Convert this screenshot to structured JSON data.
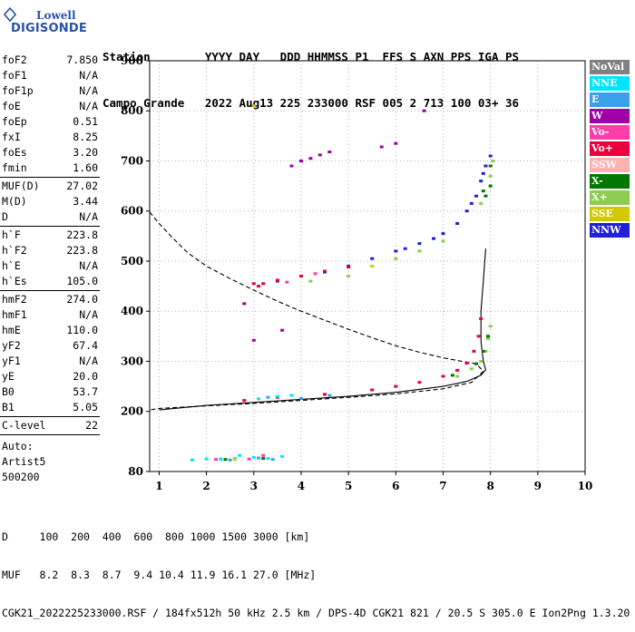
{
  "logo": {
    "line1": "Lowell",
    "line2": "DIGISONDE"
  },
  "header": {
    "row1": "Station        YYYY DAY   DDD HHMMSS P1  FFS S AXN PPS IGA PS",
    "row2": "Campo Grande   2022 Aug13 225 233000 RSF 005 2 713 100 03+ 36"
  },
  "params": {
    "group1": [
      {
        "name": "foF2",
        "value": "7.850"
      },
      {
        "name": "foF1",
        "value": "N/A"
      },
      {
        "name": "foF1p",
        "value": "N/A"
      },
      {
        "name": "foE",
        "value": "N/A"
      },
      {
        "name": "foEp",
        "value": "0.51"
      },
      {
        "name": "fxI",
        "value": "8.25"
      },
      {
        "name": "foEs",
        "value": "3.20"
      },
      {
        "name": "fmin",
        "value": "1.60"
      }
    ],
    "group2": [
      {
        "name": "MUF(D)",
        "value": "27.02"
      },
      {
        "name": "M(D)",
        "value": "3.44"
      },
      {
        "name": "D",
        "value": "N/A"
      }
    ],
    "group3": [
      {
        "name": "h`F",
        "value": "223.8"
      },
      {
        "name": "h`F2",
        "value": "223.8"
      },
      {
        "name": "h`E",
        "value": "N/A"
      },
      {
        "name": "h`Es",
        "value": "105.0"
      }
    ],
    "group4": [
      {
        "name": "hmF2",
        "value": "274.0"
      },
      {
        "name": "hmF1",
        "value": "N/A"
      },
      {
        "name": "hmE",
        "value": "110.0"
      },
      {
        "name": "yF2",
        "value": "67.4"
      },
      {
        "name": "yF1",
        "value": "N/A"
      },
      {
        "name": "yE",
        "value": "20.0"
      },
      {
        "name": "B0",
        "value": "53.7"
      },
      {
        "name": "B1",
        "value": "5.05"
      }
    ],
    "group5": [
      {
        "name": "C-level",
        "value": "22"
      }
    ],
    "auto": [
      "Auto:",
      "Artist5",
      "500200"
    ]
  },
  "legend": [
    {
      "label": "NoVal",
      "color": "#808080"
    },
    {
      "label": "NNE",
      "color": "#00e5ff"
    },
    {
      "label": "E",
      "color": "#3aa0ea"
    },
    {
      "label": "W",
      "color": "#a000a8"
    },
    {
      "label": "Vo-",
      "color": "#ff3ca8"
    },
    {
      "label": "Vo+",
      "color": "#e8003c"
    },
    {
      "label": "SSW",
      "color": "#ffb0b0"
    },
    {
      "label": "X-",
      "color": "#007800"
    },
    {
      "label": "X+",
      "color": "#8ccc50"
    },
    {
      "label": "SSE",
      "color": "#d2c800"
    },
    {
      "label": "NNW",
      "color": "#2020d8"
    }
  ],
  "bottom": {
    "line1": "D     100  200  400  600  800 1000 1500 3000 [km]",
    "line2": "MUF   8.2  8.3  8.7  9.4 10.4 11.9 16.1 27.0 [MHz]",
    "line3": "CGK21_2022225233000.RSF / 184fx512h 50 kHz 2.5 km / DPS-4D CGK21 821 / 20.5 S 305.0 E Ion2Png 1.3.20"
  },
  "chart_data": {
    "type": "scatter",
    "xlabel": "",
    "ylabel": "",
    "xlim": [
      0.8,
      10
    ],
    "ylim": [
      80,
      900
    ],
    "xticks": [
      1,
      2,
      3,
      4,
      5,
      6,
      7,
      8,
      9,
      10
    ],
    "yticks": [
      80,
      200,
      300,
      400,
      500,
      600,
      700,
      800,
      900
    ],
    "grid": "dotted",
    "legend_position": "right",
    "series": [
      {
        "color_key": "NNW",
        "points": [
          [
            5.0,
            490
          ],
          [
            5.5,
            505
          ],
          [
            6.0,
            520
          ],
          [
            6.5,
            535
          ],
          [
            7.0,
            555
          ],
          [
            7.3,
            575
          ],
          [
            7.5,
            600
          ],
          [
            7.7,
            630
          ],
          [
            7.8,
            660
          ],
          [
            7.9,
            690
          ],
          [
            8.0,
            710
          ],
          [
            4.5,
            478
          ],
          [
            4.0,
            470
          ],
          [
            3.5,
            460
          ],
          [
            6.8,
            545
          ],
          [
            7.6,
            615
          ],
          [
            7.85,
            675
          ],
          [
            6.2,
            525
          ]
        ]
      },
      {
        "color_key": "Vo+",
        "points": [
          [
            2.8,
            222
          ],
          [
            3.5,
            228
          ],
          [
            4.5,
            234
          ],
          [
            5.5,
            243
          ],
          [
            6.0,
            250
          ],
          [
            6.5,
            258
          ],
          [
            7.0,
            270
          ],
          [
            7.3,
            282
          ],
          [
            7.5,
            296
          ],
          [
            7.65,
            320
          ],
          [
            7.75,
            350
          ],
          [
            7.8,
            385
          ],
          [
            3.0,
            455
          ],
          [
            3.5,
            462
          ],
          [
            4.0,
            470
          ],
          [
            4.5,
            480
          ],
          [
            5.0,
            488
          ],
          [
            3.1,
            450
          ],
          [
            3.2,
            455
          ]
        ]
      },
      {
        "color_key": "X+",
        "points": [
          [
            7.3,
            270
          ],
          [
            7.6,
            285
          ],
          [
            7.8,
            300
          ],
          [
            7.9,
            320
          ],
          [
            7.95,
            345
          ],
          [
            8.0,
            370
          ],
          [
            5.0,
            470
          ],
          [
            6.0,
            505
          ],
          [
            7.0,
            540
          ],
          [
            7.8,
            615
          ],
          [
            8.0,
            670
          ],
          [
            8.05,
            700
          ],
          [
            6.5,
            520
          ],
          [
            4.2,
            460
          ]
        ]
      },
      {
        "color_key": "X-",
        "points": [
          [
            7.2,
            272
          ],
          [
            7.7,
            295
          ],
          [
            7.85,
            320
          ],
          [
            7.95,
            350
          ],
          [
            7.9,
            630
          ],
          [
            8.0,
            650
          ],
          [
            8.0,
            690
          ],
          [
            7.85,
            640
          ],
          [
            2.4,
            104
          ],
          [
            3.2,
            106
          ]
        ]
      },
      {
        "color_key": "NNE",
        "points": [
          [
            1.7,
            103
          ],
          [
            2.0,
            105
          ],
          [
            2.3,
            104
          ],
          [
            2.6,
            106
          ],
          [
            3.0,
            108
          ],
          [
            3.3,
            106
          ],
          [
            3.6,
            110
          ],
          [
            3.1,
            225
          ],
          [
            3.5,
            230
          ],
          [
            3.8,
            232
          ],
          [
            2.3,
            105
          ],
          [
            2.7,
            112
          ]
        ]
      },
      {
        "color_key": "W",
        "points": [
          [
            3.8,
            690
          ],
          [
            4.0,
            700
          ],
          [
            4.2,
            705
          ],
          [
            4.4,
            712
          ],
          [
            4.6,
            718
          ],
          [
            6.0,
            735
          ],
          [
            5.7,
            728
          ],
          [
            3.0,
            342
          ],
          [
            3.6,
            362
          ],
          [
            2.8,
            415
          ],
          [
            6.6,
            800
          ],
          [
            3.0,
            810
          ]
        ]
      },
      {
        "color_key": "E",
        "points": [
          [
            2.5,
            103
          ],
          [
            3.1,
            107
          ],
          [
            3.4,
            104
          ],
          [
            4.0,
            226
          ],
          [
            4.6,
            232
          ],
          [
            3.3,
            228
          ]
        ]
      },
      {
        "color_key": "Vo-",
        "points": [
          [
            2.2,
            104
          ],
          [
            2.9,
            105
          ],
          [
            3.2,
            112
          ],
          [
            3.7,
            458
          ],
          [
            4.3,
            475
          ]
        ]
      },
      {
        "color_key": "SSE",
        "points": [
          [
            3.0,
            810
          ],
          [
            2.6,
            104
          ],
          [
            5.5,
            490
          ]
        ]
      }
    ],
    "curves": [
      {
        "style": "solid",
        "points": [
          [
            1.0,
            203
          ],
          [
            2.0,
            212
          ],
          [
            3.0,
            218
          ],
          [
            4.0,
            224
          ],
          [
            5.0,
            230
          ],
          [
            6.0,
            238
          ],
          [
            7.0,
            250
          ],
          [
            7.5,
            260
          ],
          [
            7.8,
            272
          ],
          [
            7.9,
            283
          ],
          [
            7.85,
            300
          ],
          [
            7.8,
            340
          ],
          [
            7.8,
            400
          ],
          [
            7.85,
            460
          ],
          [
            7.9,
            525
          ]
        ]
      },
      {
        "style": "dashed",
        "points": [
          [
            0.8,
            598
          ],
          [
            1.0,
            575
          ],
          [
            1.3,
            545
          ],
          [
            1.6,
            517
          ],
          [
            2.0,
            490
          ],
          [
            2.5,
            465
          ],
          [
            3.0,
            442
          ],
          [
            3.5,
            420
          ],
          [
            4.0,
            400
          ],
          [
            4.5,
            382
          ],
          [
            5.0,
            364
          ],
          [
            5.5,
            347
          ],
          [
            6.0,
            331
          ],
          [
            6.5,
            318
          ],
          [
            7.0,
            307
          ],
          [
            7.4,
            300
          ],
          [
            7.7,
            295
          ],
          [
            7.85,
            280
          ],
          [
            7.6,
            258
          ],
          [
            7.0,
            245
          ],
          [
            6.0,
            235
          ],
          [
            5.0,
            228
          ],
          [
            4.0,
            222
          ],
          [
            3.0,
            216
          ],
          [
            2.0,
            211
          ],
          [
            1.0,
            206
          ],
          [
            0.8,
            203
          ]
        ]
      }
    ]
  }
}
